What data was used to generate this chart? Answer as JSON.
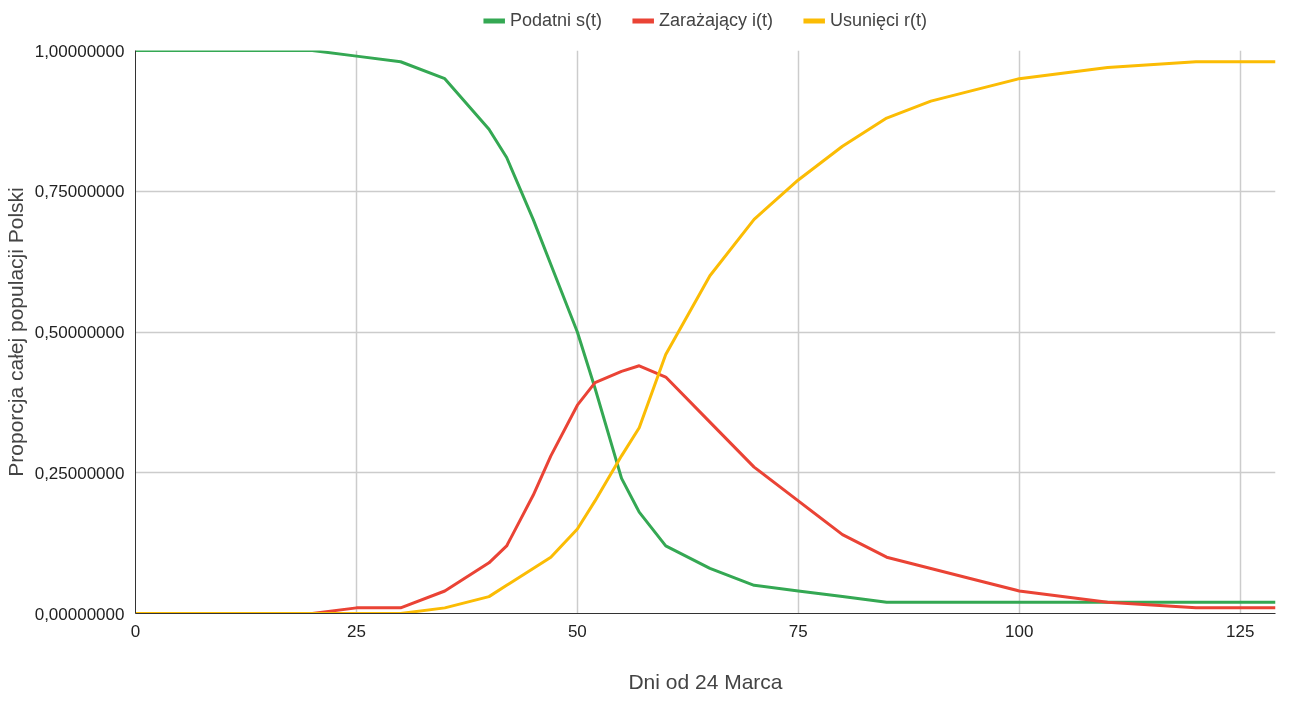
{
  "chart_data": {
    "type": "line",
    "xlabel": "Dni od 24 Marca",
    "ylabel": "Proporcja całej populacji Polski",
    "xlim": [
      0,
      129
    ],
    "xticks": [
      0,
      25,
      50,
      75,
      100,
      125
    ],
    "ylim": [
      0,
      1
    ],
    "yticks": [
      {
        "value": 0,
        "label": "0,00000000"
      },
      {
        "value": 0.25,
        "label": "0,25000000"
      },
      {
        "value": 0.5,
        "label": "0,50000000"
      },
      {
        "value": 0.75,
        "label": "0,75000000"
      },
      {
        "value": 1,
        "label": "1,00000000"
      }
    ],
    "grid": true,
    "legend": "top",
    "marker": "none",
    "line_style": "solid",
    "x": [
      0,
      10,
      20,
      25,
      30,
      35,
      40,
      42,
      45,
      47,
      50,
      52,
      55,
      57,
      60,
      65,
      70,
      75,
      80,
      85,
      90,
      95,
      100,
      110,
      120,
      129
    ],
    "series": [
      {
        "name": "Podatni s(t)",
        "color": "#34a853",
        "values": [
          1,
          1,
          1,
          0.99,
          0.98,
          0.95,
          0.86,
          0.81,
          0.7,
          0.62,
          0.5,
          0.4,
          0.24,
          0.18,
          0.12,
          0.08,
          0.05,
          0.04,
          0.03,
          0.02,
          0.02,
          0.02,
          0.02,
          0.02,
          0.02,
          0.02
        ]
      },
      {
        "name": "Zarażający i(t)",
        "color": "#ea4335",
        "values": [
          0,
          0,
          0,
          0.01,
          0.01,
          0.04,
          0.09,
          0.12,
          0.21,
          0.28,
          0.37,
          0.41,
          0.43,
          0.44,
          0.42,
          0.34,
          0.26,
          0.2,
          0.14,
          0.1,
          0.08,
          0.06,
          0.04,
          0.02,
          0.01,
          0.01
        ]
      },
      {
        "name": "Usunięci r(t)",
        "color": "#fbbc04",
        "values": [
          0,
          0,
          0,
          0,
          0,
          0.01,
          0.03,
          0.05,
          0.08,
          0.1,
          0.15,
          0.2,
          0.28,
          0.33,
          0.46,
          0.6,
          0.7,
          0.77,
          0.83,
          0.88,
          0.91,
          0.93,
          0.95,
          0.97,
          0.98,
          0.98
        ]
      }
    ]
  }
}
